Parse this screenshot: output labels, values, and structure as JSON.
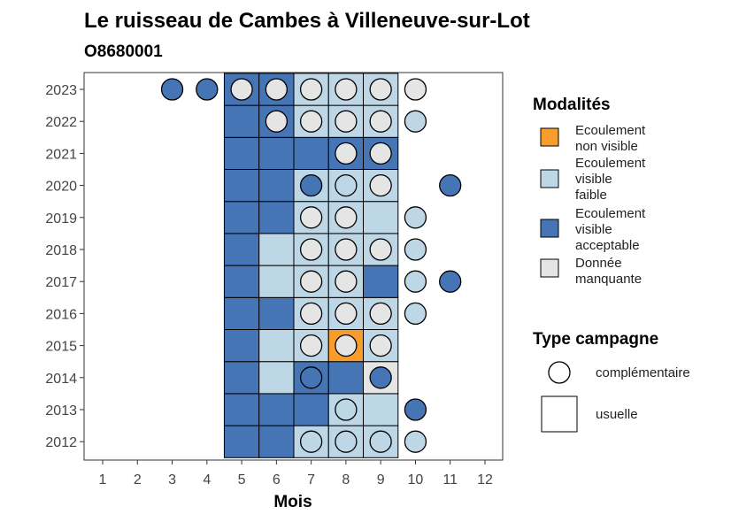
{
  "chart_data": {
    "type": "heatmap",
    "title": "Le ruisseau de Cambes à Villeneuve-sur-Lot",
    "subtitle": "O8680001",
    "xlabel": "Mois",
    "x_ticks": [
      1,
      2,
      3,
      4,
      5,
      6,
      7,
      8,
      9,
      10,
      11,
      12
    ],
    "y_ticks": [
      2012,
      2013,
      2014,
      2015,
      2016,
      2017,
      2018,
      2019,
      2020,
      2021,
      2022,
      2023
    ],
    "colors": {
      "non_visible": "#F89C2B",
      "faible": "#BDD7E7",
      "acceptable": "#4575B4",
      "manquante": "#E5E5E5"
    },
    "legend_modalites": {
      "title": "Modalités",
      "items": [
        {
          "key": "non_visible",
          "lines": [
            "Ecoulement",
            "non visible"
          ]
        },
        {
          "key": "faible",
          "lines": [
            "Ecoulement",
            "visible",
            "faible"
          ]
        },
        {
          "key": "acceptable",
          "lines": [
            "Ecoulement",
            "visible",
            "acceptable"
          ]
        },
        {
          "key": "manquante",
          "lines": [
            "Donnée",
            "manquante"
          ]
        }
      ]
    },
    "legend_type": {
      "title": "Type campagne",
      "items": [
        {
          "shape": "circle",
          "label": "complémentaire"
        },
        {
          "shape": "square",
          "label": "usuelle"
        }
      ]
    },
    "tiles": [
      {
        "year": 2012,
        "month": 5,
        "v": "acceptable"
      },
      {
        "year": 2012,
        "month": 6,
        "v": "acceptable"
      },
      {
        "year": 2012,
        "month": 7,
        "v": "faible"
      },
      {
        "year": 2012,
        "month": 8,
        "v": "faible"
      },
      {
        "year": 2012,
        "month": 9,
        "v": "faible"
      },
      {
        "year": 2013,
        "month": 5,
        "v": "acceptable"
      },
      {
        "year": 2013,
        "month": 6,
        "v": "acceptable"
      },
      {
        "year": 2013,
        "month": 7,
        "v": "acceptable"
      },
      {
        "year": 2013,
        "month": 8,
        "v": "faible"
      },
      {
        "year": 2013,
        "month": 9,
        "v": "faible"
      },
      {
        "year": 2014,
        "month": 5,
        "v": "acceptable"
      },
      {
        "year": 2014,
        "month": 6,
        "v": "faible"
      },
      {
        "year": 2014,
        "month": 7,
        "v": "acceptable"
      },
      {
        "year": 2014,
        "month": 8,
        "v": "acceptable"
      },
      {
        "year": 2014,
        "month": 9,
        "v": "manquante"
      },
      {
        "year": 2015,
        "month": 5,
        "v": "acceptable"
      },
      {
        "year": 2015,
        "month": 6,
        "v": "faible"
      },
      {
        "year": 2015,
        "month": 7,
        "v": "faible"
      },
      {
        "year": 2015,
        "month": 8,
        "v": "non_visible"
      },
      {
        "year": 2015,
        "month": 9,
        "v": "faible"
      },
      {
        "year": 2016,
        "month": 5,
        "v": "acceptable"
      },
      {
        "year": 2016,
        "month": 6,
        "v": "acceptable"
      },
      {
        "year": 2016,
        "month": 7,
        "v": "faible"
      },
      {
        "year": 2016,
        "month": 8,
        "v": "faible"
      },
      {
        "year": 2016,
        "month": 9,
        "v": "faible"
      },
      {
        "year": 2017,
        "month": 5,
        "v": "acceptable"
      },
      {
        "year": 2017,
        "month": 6,
        "v": "faible"
      },
      {
        "year": 2017,
        "month": 7,
        "v": "faible"
      },
      {
        "year": 2017,
        "month": 8,
        "v": "faible"
      },
      {
        "year": 2017,
        "month": 9,
        "v": "acceptable"
      },
      {
        "year": 2018,
        "month": 5,
        "v": "acceptable"
      },
      {
        "year": 2018,
        "month": 6,
        "v": "faible"
      },
      {
        "year": 2018,
        "month": 7,
        "v": "faible"
      },
      {
        "year": 2018,
        "month": 8,
        "v": "faible"
      },
      {
        "year": 2018,
        "month": 9,
        "v": "faible"
      },
      {
        "year": 2019,
        "month": 5,
        "v": "acceptable"
      },
      {
        "year": 2019,
        "month": 6,
        "v": "acceptable"
      },
      {
        "year": 2019,
        "month": 7,
        "v": "faible"
      },
      {
        "year": 2019,
        "month": 8,
        "v": "faible"
      },
      {
        "year": 2019,
        "month": 9,
        "v": "faible"
      },
      {
        "year": 2020,
        "month": 5,
        "v": "acceptable"
      },
      {
        "year": 2020,
        "month": 6,
        "v": "acceptable"
      },
      {
        "year": 2020,
        "month": 7,
        "v": "faible"
      },
      {
        "year": 2020,
        "month": 8,
        "v": "faible"
      },
      {
        "year": 2020,
        "month": 9,
        "v": "faible"
      },
      {
        "year": 2021,
        "month": 5,
        "v": "acceptable"
      },
      {
        "year": 2021,
        "month": 6,
        "v": "acceptable"
      },
      {
        "year": 2021,
        "month": 7,
        "v": "acceptable"
      },
      {
        "year": 2021,
        "month": 8,
        "v": "acceptable"
      },
      {
        "year": 2021,
        "month": 9,
        "v": "acceptable"
      },
      {
        "year": 2022,
        "month": 5,
        "v": "acceptable"
      },
      {
        "year": 2022,
        "month": 6,
        "v": "acceptable"
      },
      {
        "year": 2022,
        "month": 7,
        "v": "faible"
      },
      {
        "year": 2022,
        "month": 8,
        "v": "faible"
      },
      {
        "year": 2022,
        "month": 9,
        "v": "faible"
      },
      {
        "year": 2023,
        "month": 5,
        "v": "acceptable"
      },
      {
        "year": 2023,
        "month": 6,
        "v": "acceptable"
      },
      {
        "year": 2023,
        "month": 7,
        "v": "faible"
      },
      {
        "year": 2023,
        "month": 8,
        "v": "faible"
      },
      {
        "year": 2023,
        "month": 9,
        "v": "faible"
      }
    ],
    "points": [
      {
        "year": 2012,
        "month": 7,
        "v": "faible"
      },
      {
        "year": 2012,
        "month": 8,
        "v": "faible"
      },
      {
        "year": 2012,
        "month": 9,
        "v": "faible"
      },
      {
        "year": 2012,
        "month": 10,
        "v": "faible"
      },
      {
        "year": 2013,
        "month": 8,
        "v": "faible"
      },
      {
        "year": 2013,
        "month": 10,
        "v": "acceptable"
      },
      {
        "year": 2014,
        "month": 7,
        "v": "acceptable"
      },
      {
        "year": 2014,
        "month": 9,
        "v": "acceptable"
      },
      {
        "year": 2015,
        "month": 7,
        "v": "manquante"
      },
      {
        "year": 2015,
        "month": 8,
        "v": "manquante"
      },
      {
        "year": 2015,
        "month": 9,
        "v": "manquante"
      },
      {
        "year": 2016,
        "month": 7,
        "v": "manquante"
      },
      {
        "year": 2016,
        "month": 8,
        "v": "manquante"
      },
      {
        "year": 2016,
        "month": 9,
        "v": "manquante"
      },
      {
        "year": 2016,
        "month": 10,
        "v": "faible"
      },
      {
        "year": 2017,
        "month": 7,
        "v": "manquante"
      },
      {
        "year": 2017,
        "month": 8,
        "v": "manquante"
      },
      {
        "year": 2017,
        "month": 10,
        "v": "faible"
      },
      {
        "year": 2017,
        "month": 11,
        "v": "acceptable"
      },
      {
        "year": 2018,
        "month": 7,
        "v": "manquante"
      },
      {
        "year": 2018,
        "month": 8,
        "v": "manquante"
      },
      {
        "year": 2018,
        "month": 9,
        "v": "manquante"
      },
      {
        "year": 2018,
        "month": 10,
        "v": "faible"
      },
      {
        "year": 2019,
        "month": 7,
        "v": "manquante"
      },
      {
        "year": 2019,
        "month": 8,
        "v": "manquante"
      },
      {
        "year": 2019,
        "month": 10,
        "v": "faible"
      },
      {
        "year": 2020,
        "month": 7,
        "v": "acceptable"
      },
      {
        "year": 2020,
        "month": 8,
        "v": "faible"
      },
      {
        "year": 2020,
        "month": 9,
        "v": "manquante"
      },
      {
        "year": 2020,
        "month": 11,
        "v": "acceptable"
      },
      {
        "year": 2021,
        "month": 8,
        "v": "manquante"
      },
      {
        "year": 2021,
        "month": 9,
        "v": "manquante"
      },
      {
        "year": 2022,
        "month": 6,
        "v": "manquante"
      },
      {
        "year": 2022,
        "month": 7,
        "v": "manquante"
      },
      {
        "year": 2022,
        "month": 8,
        "v": "manquante"
      },
      {
        "year": 2022,
        "month": 9,
        "v": "manquante"
      },
      {
        "year": 2022,
        "month": 10,
        "v": "faible"
      },
      {
        "year": 2023,
        "month": 3,
        "v": "acceptable"
      },
      {
        "year": 2023,
        "month": 4,
        "v": "acceptable"
      },
      {
        "year": 2023,
        "month": 5,
        "v": "manquante"
      },
      {
        "year": 2023,
        "month": 6,
        "v": "manquante"
      },
      {
        "year": 2023,
        "month": 7,
        "v": "manquante"
      },
      {
        "year": 2023,
        "month": 8,
        "v": "manquante"
      },
      {
        "year": 2023,
        "month": 9,
        "v": "manquante"
      },
      {
        "year": 2023,
        "month": 10,
        "v": "manquante"
      }
    ]
  }
}
